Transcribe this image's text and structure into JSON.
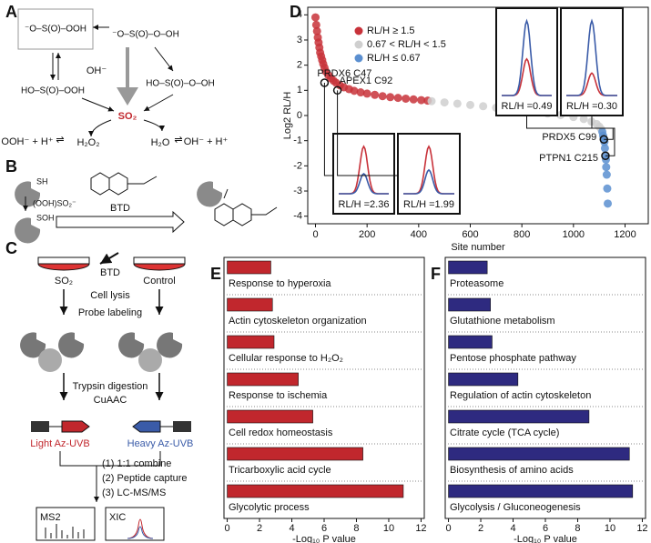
{
  "panel_labels": [
    "A",
    "B",
    "C",
    "D",
    "E",
    "F"
  ],
  "panel_a": {
    "structures": [
      "⁻O–S(O)–OOH",
      "⁻O–S(O)–O–OH",
      "HO–S(O)–OOH",
      "HO–S(O)–O–OH"
    ],
    "so2": "SO₂",
    "oh": "OH⁻",
    "left_eq": "OOH⁻ + H⁺",
    "h2o2": "H₂O₂",
    "h2o": "H₂O",
    "right_eq": "OH⁻ + H⁺"
  },
  "panel_b": {
    "thiol": "SH",
    "reagent": "(OOH)SO₂⁻",
    "sulfenic": "SOH",
    "probe": "BTD"
  },
  "panel_c": {
    "treatment": "SO₂",
    "control": "Control",
    "probe": "BTD",
    "steps": [
      "Cell lysis",
      "Probe labeling",
      "Trypsin digestion",
      "CuAAC"
    ],
    "light": "Light Az-UVB",
    "heavy": "Heavy Az-UVB",
    "workup": [
      "(1) 1:1 combine",
      "(2) Peptide capture",
      "(3) LC-MS/MS"
    ],
    "ms2": "MS2",
    "xic": "XIC"
  },
  "chart_data": [
    {
      "type": "scatter",
      "xlabel": "Site number",
      "ylabel": "Log2 RL/H",
      "xlim": [
        -30,
        1290
      ],
      "ylim": [
        -4.3,
        4.3
      ],
      "xticks": [
        0,
        200,
        400,
        600,
        800,
        1000,
        1200
      ],
      "yticks": [
        -4,
        -3,
        -2,
        -1,
        0,
        1,
        2,
        3,
        4
      ],
      "legend": "upper left",
      "series": [
        {
          "name": "RL/H ≥ 1.5",
          "color": "#c8323a",
          "x": [
            0,
            3,
            6,
            9,
            12,
            15,
            18,
            22,
            26,
            30,
            35,
            40,
            50,
            60,
            70,
            80,
            95,
            110,
            130,
            150,
            175,
            200,
            230,
            260,
            290,
            320,
            350,
            380,
            410,
            435
          ],
          "values": [
            3.9,
            3.6,
            3.35,
            3.1,
            2.9,
            2.7,
            2.5,
            2.35,
            2.2,
            2.05,
            1.9,
            1.75,
            1.6,
            1.48,
            1.38,
            1.3,
            1.2,
            1.12,
            1.05,
            0.98,
            0.92,
            0.87,
            0.82,
            0.77,
            0.73,
            0.7,
            0.67,
            0.64,
            0.61,
            0.59
          ]
        },
        {
          "name": "0.67 < RL/H < 1.5",
          "color": "#cfcfcf",
          "x": [
            450,
            500,
            550,
            600,
            650,
            700,
            750,
            800,
            850,
            900,
            950,
            1000,
            1040,
            1070,
            1090,
            1100,
            1108
          ],
          "values": [
            0.57,
            0.52,
            0.47,
            0.42,
            0.37,
            0.31,
            0.26,
            0.2,
            0.14,
            0.08,
            0.02,
            -0.06,
            -0.14,
            -0.24,
            -0.34,
            -0.44,
            -0.55
          ]
        },
        {
          "name": "RL/H ≤ 0.67",
          "color": "#5b8fd0",
          "x": [
            1112,
            1115,
            1118,
            1120,
            1122,
            1124,
            1126,
            1127,
            1129,
            1131,
            1133
          ],
          "values": [
            -0.65,
            -0.8,
            -0.95,
            -1.05,
            -1.3,
            -1.6,
            -1.75,
            -2.05,
            -2.35,
            -2.9,
            -3.5
          ]
        }
      ],
      "annotations": [
        {
          "text": "PRDX6 C47",
          "x": 35,
          "y": 1.3,
          "inset_label": "RL/H =2.36",
          "ratio": 2.36
        },
        {
          "text": "APEX1 C92",
          "x": 85,
          "y": 1.0,
          "inset_label": "RL/H =1.99",
          "ratio": 1.99
        },
        {
          "text": "PRDX5 C99",
          "x": 1118,
          "y": -0.95,
          "inset_label": "RL/H =0.49",
          "ratio": 0.49
        },
        {
          "text": "PTPN1 C215",
          "x": 1124,
          "y": -1.6,
          "inset_label": "RL/H =0.30",
          "ratio": 0.3
        }
      ]
    },
    {
      "type": "bar",
      "orientation": "horizontal",
      "xlabel": "-Log₁₀ P value",
      "color": "#c1272d",
      "categories": [
        "Response to hyperoxia",
        "Actin cytoskeleton organization",
        "Cellular response to H₂O₂",
        "Response to ischemia",
        "Cell redox homeostasis",
        "Tricarboxylic acid cycle",
        "Glycolytic process"
      ],
      "values": [
        2.7,
        2.8,
        2.9,
        4.4,
        5.3,
        8.4,
        10.9
      ],
      "xlim": [
        -0.2,
        12.2
      ],
      "xticks": [
        0,
        2,
        4,
        6,
        8,
        10,
        12
      ]
    },
    {
      "type": "bar",
      "orientation": "horizontal",
      "xlabel": "-Log₁₀ P value",
      "color": "#2e2a80",
      "categories": [
        "Proteasome",
        "Glutathione metabolism",
        "Pentose phosphate pathway",
        "Regulation of actin cytoskeleton",
        "Citrate cycle (TCA cycle)",
        "Biosynthesis of amino acids",
        "Glycolysis / Gluconeogenesis"
      ],
      "values": [
        2.4,
        2.6,
        2.7,
        4.3,
        8.7,
        11.2,
        11.4
      ],
      "xlim": [
        -0.2,
        12.2
      ],
      "xticks": [
        0,
        2,
        4,
        6,
        8,
        10,
        12
      ]
    }
  ]
}
